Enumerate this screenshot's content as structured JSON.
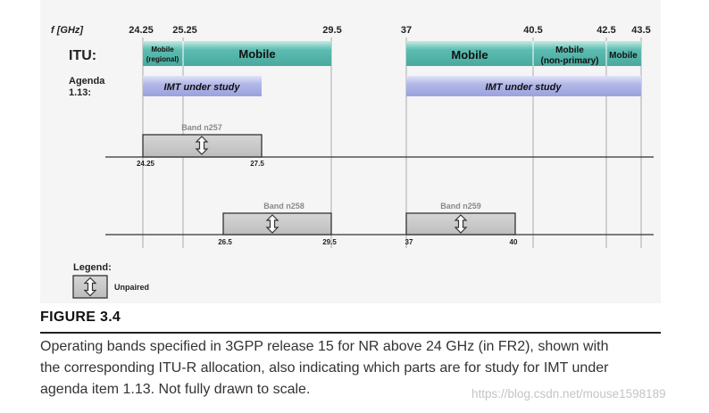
{
  "figure": {
    "axis_label": "f [GHz]",
    "freq_ticks": [
      "24.25",
      "25.25",
      "29.5",
      "37",
      "40.5",
      "42.5",
      "43.5"
    ],
    "itu": {
      "label": "ITU:",
      "blocks": [
        {
          "line1": "Mobile",
          "line2": "(regional)"
        },
        {
          "text": "Mobile"
        },
        {
          "text": "Mobile"
        },
        {
          "line1": "Mobile",
          "line2": "(non-primary)"
        },
        {
          "text": "Mobile"
        }
      ]
    },
    "agenda": {
      "label_line1": "Agenda",
      "label_line2": "1.13:",
      "blocks": [
        "IMT under study",
        "IMT under study"
      ]
    },
    "bands": [
      {
        "name": "Band n257",
        "low_edge": "24.25",
        "high_edge": "27.5",
        "icon": "up-down-arrow-icon"
      },
      {
        "name": "Band n258",
        "low_edge": "26.5",
        "high_edge": "29.5",
        "icon": "up-down-arrow-icon"
      },
      {
        "name": "Band n259",
        "low_edge": "37",
        "high_edge": "40",
        "icon": "up-down-arrow-icon"
      }
    ],
    "legend": {
      "title": "Legend:",
      "items": [
        {
          "icon": "up-down-arrow-icon",
          "label": "Unpaired"
        }
      ]
    }
  },
  "caption": {
    "figure_label": "FIGURE 3.4",
    "lines": [
      "Operating bands specified in 3GPP release 15 for NR above 24 GHz (in FR2), shown with",
      "the corresponding ITU-R allocation, also indicating which parts are for study for IMT under",
      "agenda item 1.13. Not fully drawn to scale."
    ]
  },
  "watermark": "https://blog.csdn.net/mouse1598189",
  "colors": {
    "itu_teal": "#5cbcb1",
    "imt_lavender": "#b3b8e8",
    "band_gray": "#c4c4c4",
    "panel_bg": "#f5f5f5"
  }
}
